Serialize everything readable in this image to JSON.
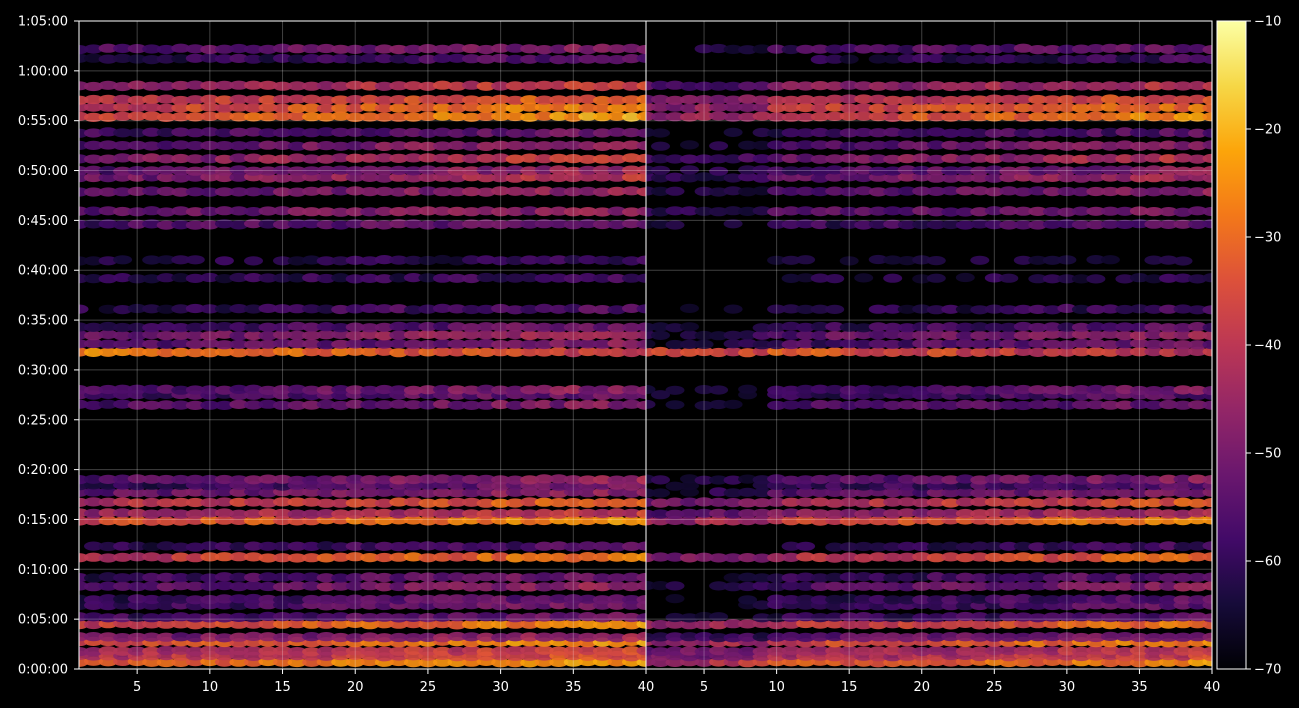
{
  "chart_data": {
    "type": "heatmap",
    "title": "",
    "xlabel": "",
    "ylabel": "",
    "grid": true,
    "colormap": "inferno",
    "panels": [
      {
        "name": "",
        "xlim": [
          1,
          40
        ]
      },
      {
        "name": "",
        "xlim": [
          1,
          40
        ]
      }
    ],
    "x_ticks": [
      "5",
      "10",
      "15",
      "20",
      "25",
      "30",
      "35",
      "40"
    ],
    "x_tick_values": [
      5,
      10,
      15,
      20,
      25,
      30,
      35,
      40
    ],
    "y_ticks": [
      "0:00:00",
      "0:05:00",
      "0:10:00",
      "0:15:00",
      "0:20:00",
      "0:25:00",
      "0:30:00",
      "0:35:00",
      "0:40:00",
      "0:45:00",
      "0:50:00",
      "0:55:00",
      "1:00:00",
      "1:05:00"
    ],
    "y_tick_values": [
      0,
      5,
      10,
      15,
      20,
      25,
      30,
      35,
      40,
      45,
      50,
      55,
      60,
      65
    ],
    "ylim": [
      0,
      65
    ],
    "y_unit": "minutes",
    "colorbar": {
      "range": [
        -70,
        -10
      ],
      "ticks": [
        "−10",
        "−20",
        "−30",
        "−40",
        "−50",
        "−60",
        "−70"
      ],
      "tick_values": [
        -10,
        -20,
        -30,
        -40,
        -50,
        -60,
        -70
      ]
    },
    "bands": [
      {
        "t": 0.7,
        "level": -28,
        "trend": 0.3
      },
      {
        "t": 1.3,
        "level": -38,
        "trend": 0.2
      },
      {
        "t": 1.8,
        "level": -40,
        "trend": 0.2
      },
      {
        "t": 2.7,
        "level": -30,
        "trend": 0.35
      },
      {
        "t": 3.2,
        "level": -48,
        "trend": 0.2
      },
      {
        "t": 4.5,
        "level": -32,
        "trend": 0.35
      },
      {
        "t": 5.2,
        "level": -55,
        "trend": 0.2
      },
      {
        "t": 6.4,
        "level": -55,
        "trend": 0.3
      },
      {
        "t": 7.0,
        "level": -56,
        "trend": 0.3
      },
      {
        "t": 8.3,
        "level": -50,
        "trend": 0.3
      },
      {
        "t": 9.2,
        "level": -55,
        "trend": 0.3
      },
      {
        "t": 11.2,
        "level": -34,
        "trend": 0.4
      },
      {
        "t": 12.3,
        "level": -58,
        "trend": 0.2
      },
      {
        "t": 14.9,
        "level": -30,
        "trend": 0.35
      },
      {
        "t": 15.6,
        "level": -42,
        "trend": 0.2
      },
      {
        "t": 16.7,
        "level": -36,
        "trend": 0.35
      },
      {
        "t": 17.7,
        "level": -50,
        "trend": 0.2
      },
      {
        "t": 18.4,
        "level": -55,
        "trend": 0.3
      },
      {
        "t": 19.0,
        "level": -50,
        "trend": 0.3
      },
      {
        "t": 26.5,
        "level": -52,
        "trend": 0.2
      },
      {
        "t": 27.5,
        "level": -55,
        "trend": 0.2
      },
      {
        "t": 28.0,
        "level": -52,
        "trend": 0.3
      },
      {
        "t": 31.8,
        "level": -32,
        "trend": -0.3
      },
      {
        "t": 32.6,
        "level": -52,
        "trend": 0.2
      },
      {
        "t": 33.5,
        "level": -48,
        "trend": 0.3
      },
      {
        "t": 34.3,
        "level": -55,
        "trend": 0.2
      },
      {
        "t": 36.1,
        "level": -58,
        "trend": 0.2
      },
      {
        "t": 39.2,
        "level": -60,
        "trend": 0.1
      },
      {
        "t": 41.0,
        "level": -62,
        "trend": 0.1
      },
      {
        "t": 44.6,
        "level": -54,
        "trend": 0.2
      },
      {
        "t": 45.9,
        "level": -50,
        "trend": 0.2
      },
      {
        "t": 47.9,
        "level": -50,
        "trend": 0.3
      },
      {
        "t": 49.3,
        "level": -46,
        "trend": 0.35
      },
      {
        "t": 50.0,
        "level": -50,
        "trend": 0.3
      },
      {
        "t": 51.2,
        "level": -44,
        "trend": 0.4
      },
      {
        "t": 52.5,
        "level": -50,
        "trend": 0.35
      },
      {
        "t": 53.8,
        "level": -55,
        "trend": 0.2
      },
      {
        "t": 55.4,
        "level": -30,
        "trend": 0.4
      },
      {
        "t": 56.3,
        "level": -32,
        "trend": 0.35
      },
      {
        "t": 57.1,
        "level": -36,
        "trend": 0.3
      },
      {
        "t": 58.5,
        "level": -42,
        "trend": 0.3
      },
      {
        "t": 61.2,
        "level": -58,
        "trend": 0.2
      },
      {
        "t": 62.2,
        "level": -52,
        "trend": 0.2
      }
    ]
  }
}
